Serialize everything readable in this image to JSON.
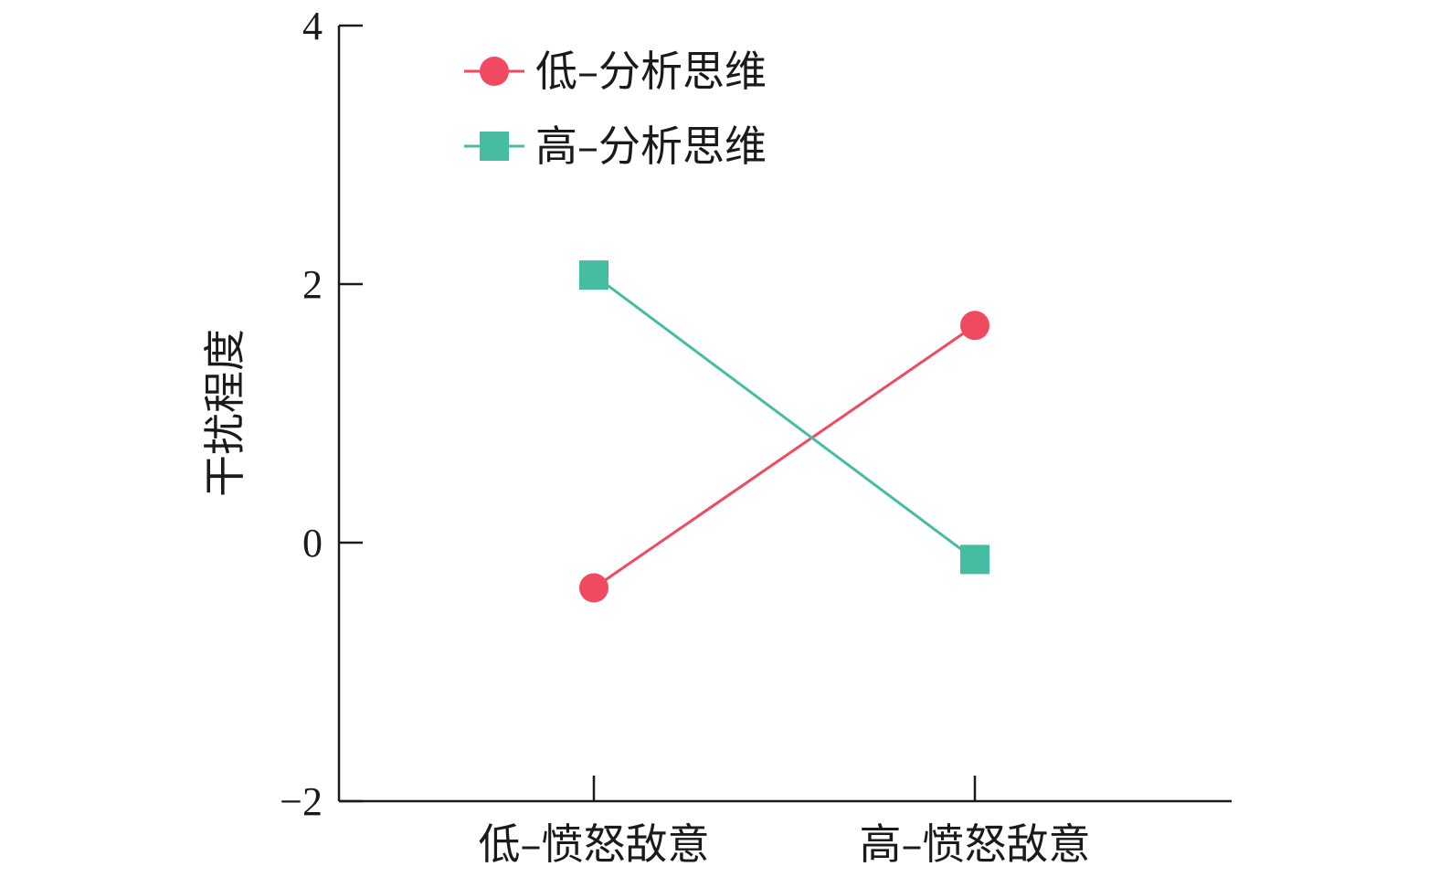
{
  "chart_data": {
    "type": "line",
    "categories": [
      "低–愤怒敌意",
      "高–愤怒敌意"
    ],
    "series": [
      {
        "name": "低–分析思维",
        "values": [
          -0.35,
          1.68
        ],
        "color": "#ef4a60",
        "marker": "circle"
      },
      {
        "name": "高–分析思维",
        "values": [
          2.07,
          -0.13
        ],
        "color": "#46bca3",
        "marker": "square"
      }
    ],
    "ylabel": "干扰程度",
    "xlabel": "",
    "ylim": [
      -2,
      4
    ],
    "yticks": [
      -2,
      0,
      2,
      4
    ],
    "ytick_labels": [
      "−2",
      "0",
      "2",
      "4"
    ],
    "grid": false,
    "legend_position": "top-left"
  }
}
